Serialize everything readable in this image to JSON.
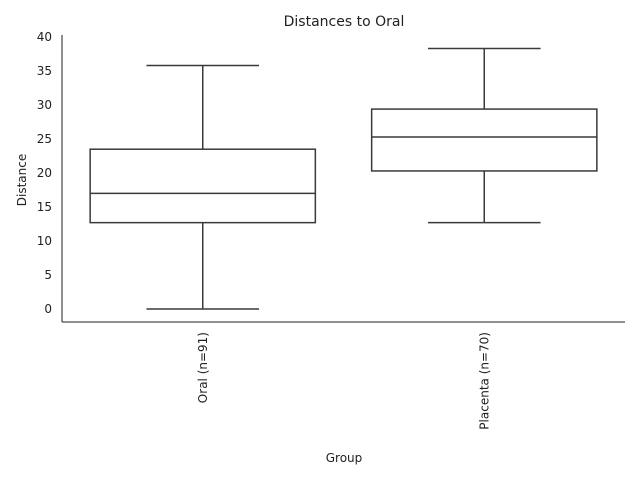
{
  "chart_data": {
    "type": "box",
    "title": "Distances to Oral",
    "xlabel": "Group",
    "ylabel": "Distance",
    "ylim": [
      -2,
      40
    ],
    "yticks": [
      0,
      5,
      10,
      15,
      20,
      25,
      30,
      35,
      40
    ],
    "categories": [
      "Oral (n=91)",
      "Placenta (n=70)"
    ],
    "boxes": [
      {
        "category": "Oral (n=91)",
        "whisker_low": 0,
        "q1": 12.7,
        "median": 17.0,
        "q3": 23.5,
        "whisker_high": 35.8
      },
      {
        "category": "Placenta (n=70)",
        "whisker_low": 12.7,
        "q1": 20.3,
        "median": 25.3,
        "q3": 29.4,
        "whisker_high": 38.3
      }
    ],
    "grid": false,
    "colors": {
      "stroke": "#3a3a3a",
      "box_fill": "#ffffff",
      "axis": "#222222"
    }
  }
}
